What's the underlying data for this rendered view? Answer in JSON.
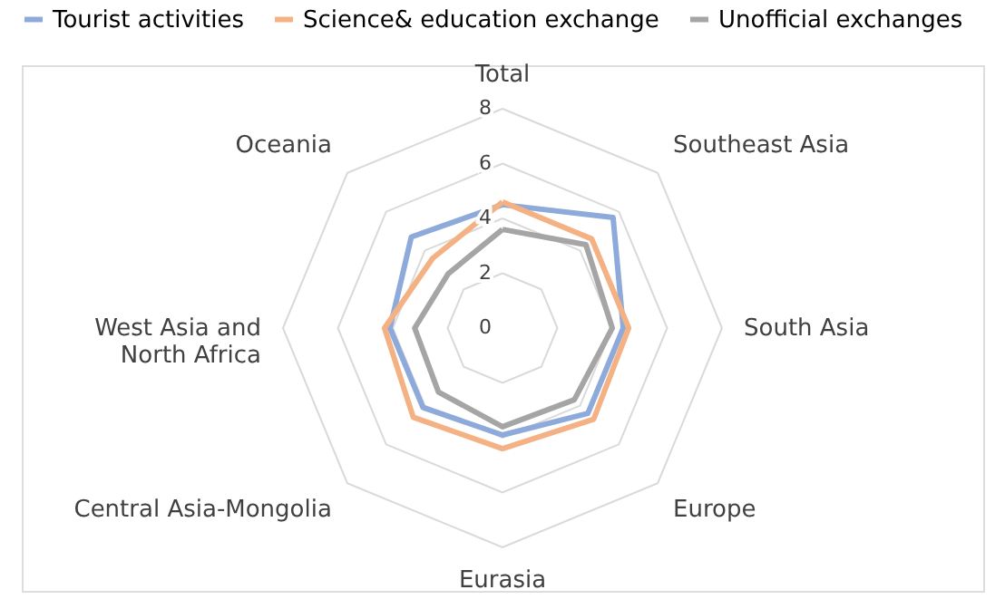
{
  "chart_data": {
    "type": "radar",
    "categories": [
      "Total",
      "Southeast Asia",
      "South Asia",
      "Europe",
      "Eurasia",
      "Central Asia-Mongolia",
      "West Asia and North Africa",
      "Oceania"
    ],
    "series": [
      {
        "name": "Tourist activities",
        "color": "#8eaadb",
        "values": [
          4.5,
          5.7,
          4.4,
          4.4,
          3.9,
          4.1,
          4.1,
          4.7
        ]
      },
      {
        "name": "Science& education exchange",
        "color": "#f4b183",
        "values": [
          4.6,
          4.6,
          4.6,
          4.7,
          4.4,
          4.6,
          4.3,
          3.6
        ]
      },
      {
        "name": "Unofficial exchanges",
        "color": "#a5a5a5",
        "values": [
          3.6,
          4.3,
          4.0,
          3.7,
          3.6,
          3.3,
          3.2,
          2.8
        ]
      }
    ],
    "ylim": [
      0,
      8
    ],
    "yticks": [
      0,
      2,
      4,
      6,
      8
    ],
    "grid": true,
    "legend": "top"
  }
}
